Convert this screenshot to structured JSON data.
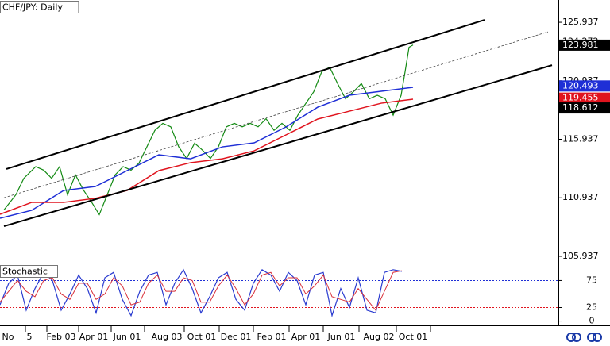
{
  "chart_data": [
    {
      "type": "line",
      "title": "CHF/JPY: Daily",
      "xlim": [
        0,
        703
      ],
      "ylim": [
        105.46,
        127.84
      ],
      "yticks": [
        105.937,
        110.937,
        115.937,
        120.937,
        124.272,
        125.937
      ],
      "xticks": [
        {
          "value": 10,
          "label": "No"
        },
        {
          "value": 37,
          "label": "5"
        },
        {
          "value": 77,
          "label": "Feb 03"
        },
        {
          "value": 118,
          "label": "Apr 01"
        },
        {
          "value": 160,
          "label": "Jun 01"
        },
        {
          "value": 210,
          "label": "Aug 03"
        },
        {
          "value": 254,
          "label": "Oct 01"
        },
        {
          "value": 297,
          "label": "Dec 01"
        },
        {
          "value": 342,
          "label": "Feb 01"
        },
        {
          "value": 385,
          "label": "Apr 01"
        },
        {
          "value": 430,
          "label": "Jun 01"
        },
        {
          "value": 477,
          "label": "Aug 02"
        },
        {
          "value": 520,
          "label": "Oct 01"
        }
      ],
      "markers": [
        {
          "value": 123.981,
          "color": "#000000"
        },
        {
          "value": 120.493,
          "color": "#1f2fd6"
        },
        {
          "value": 119.455,
          "color": "#e0141e"
        },
        {
          "value": 118.612,
          "color": "#000000"
        }
      ],
      "series": [
        {
          "color": "#138a13",
          "width": 1.2,
          "x": [
            5,
            20,
            30,
            45,
            55,
            65,
            75,
            85,
            95,
            105,
            115,
            125,
            135,
            145,
            155,
            165,
            175,
            185,
            195,
            205,
            215,
            225,
            235,
            245,
            255,
            265,
            275,
            285,
            295,
            305,
            315,
            325,
            335,
            345,
            355,
            365,
            375,
            385,
            395,
            405,
            415,
            425,
            435,
            445,
            455,
            465,
            475,
            485,
            495,
            505,
            510,
            515,
            520
          ],
          "values": [
            109.9,
            111.2,
            112.6,
            113.6,
            113.3,
            112.6,
            113.6,
            111.2,
            112.9,
            111.6,
            110.6,
            109.5,
            111.2,
            112.9,
            113.6,
            113.3,
            113.9,
            115.3,
            116.7,
            117.3,
            117.0,
            115.3,
            114.3,
            115.6,
            115.0,
            114.3,
            115.3,
            117.0,
            117.3,
            117.0,
            117.3,
            117.0,
            117.7,
            116.7,
            117.3,
            116.7,
            118.0,
            119.0,
            120.0,
            121.7,
            122.1,
            120.7,
            119.4,
            120.0,
            120.7,
            119.4,
            119.7,
            119.4,
            118.0,
            119.7,
            121.7,
            123.8,
            124.0
          ]
        },
        {
          "color": "#1f2fd6",
          "width": 1.5,
          "x": [
            0,
            40,
            80,
            120,
            160,
            200,
            240,
            280,
            320,
            360,
            400,
            440,
            480,
            520
          ],
          "values": [
            109.19,
            109.87,
            111.56,
            111.9,
            113.26,
            114.61,
            114.27,
            115.29,
            115.63,
            116.99,
            118.68,
            119.7,
            120.04,
            120.38
          ]
        },
        {
          "color": "#e0141e",
          "width": 1.5,
          "x": [
            0,
            40,
            80,
            120,
            160,
            200,
            240,
            280,
            320,
            360,
            400,
            440,
            480,
            520
          ],
          "values": [
            109.53,
            110.55,
            110.55,
            110.89,
            111.56,
            113.26,
            113.94,
            114.27,
            114.95,
            116.31,
            117.67,
            118.34,
            119.02,
            119.36
          ]
        },
        {
          "color": "#000000",
          "width": 2,
          "x": [
            8,
            610
          ],
          "values": [
            113.4,
            126.14
          ]
        },
        {
          "color": "#000000",
          "width": 2,
          "x": [
            5,
            695
          ],
          "values": [
            108.51,
            122.27
          ]
        },
        {
          "color": "#444444",
          "width": 0.8,
          "dashed": true,
          "x": [
            5,
            690
          ],
          "values": [
            110.94,
            125.12
          ]
        }
      ]
    },
    {
      "type": "line",
      "title": "Stochastic",
      "xlim": [
        0,
        703
      ],
      "ylim": [
        -8,
        105
      ],
      "yticks": [
        0,
        25,
        75
      ],
      "levels": [
        {
          "value": 75,
          "color": "#1f2fd6"
        },
        {
          "value": 25,
          "color": "#e0141e"
        }
      ],
      "series": [
        {
          "color": "#2a3bd0",
          "width": 1.2,
          "x": [
            0,
            11,
            22,
            33,
            44,
            55,
            66,
            77,
            88,
            99,
            110,
            121,
            132,
            143,
            154,
            165,
            176,
            187,
            198,
            209,
            220,
            231,
            242,
            253,
            264,
            275,
            286,
            297,
            308,
            319,
            330,
            341,
            352,
            363,
            374,
            385,
            396,
            407,
            418,
            429,
            440,
            451,
            462,
            473,
            484,
            495,
            506
          ],
          "values": [
            30,
            70,
            85,
            20,
            60,
            90,
            75,
            20,
            50,
            85,
            60,
            15,
            80,
            90,
            40,
            10,
            55,
            85,
            90,
            30,
            70,
            95,
            60,
            15,
            45,
            80,
            90,
            40,
            20,
            70,
            95,
            85,
            55,
            90,
            75,
            30,
            85,
            90,
            10,
            60,
            25,
            80,
            20,
            15,
            90,
            95,
            92
          ]
        },
        {
          "color": "#d8303a",
          "width": 1,
          "x": [
            0,
            11,
            22,
            33,
            44,
            55,
            66,
            77,
            88,
            99,
            110,
            121,
            132,
            143,
            154,
            165,
            176,
            187,
            198,
            209,
            220,
            231,
            242,
            253,
            264,
            275,
            286,
            297,
            308,
            319,
            330,
            341,
            352,
            363,
            374,
            385,
            396,
            407,
            418,
            429,
            440,
            451,
            462,
            473,
            484,
            495,
            506
          ],
          "values": [
            35,
            55,
            75,
            55,
            45,
            75,
            80,
            50,
            40,
            70,
            70,
            40,
            50,
            80,
            65,
            30,
            35,
            70,
            85,
            55,
            55,
            80,
            75,
            35,
            35,
            65,
            85,
            60,
            30,
            50,
            85,
            90,
            65,
            80,
            80,
            50,
            65,
            85,
            45,
            40,
            35,
            60,
            40,
            20,
            55,
            90,
            93
          ]
        }
      ]
    }
  ]
}
